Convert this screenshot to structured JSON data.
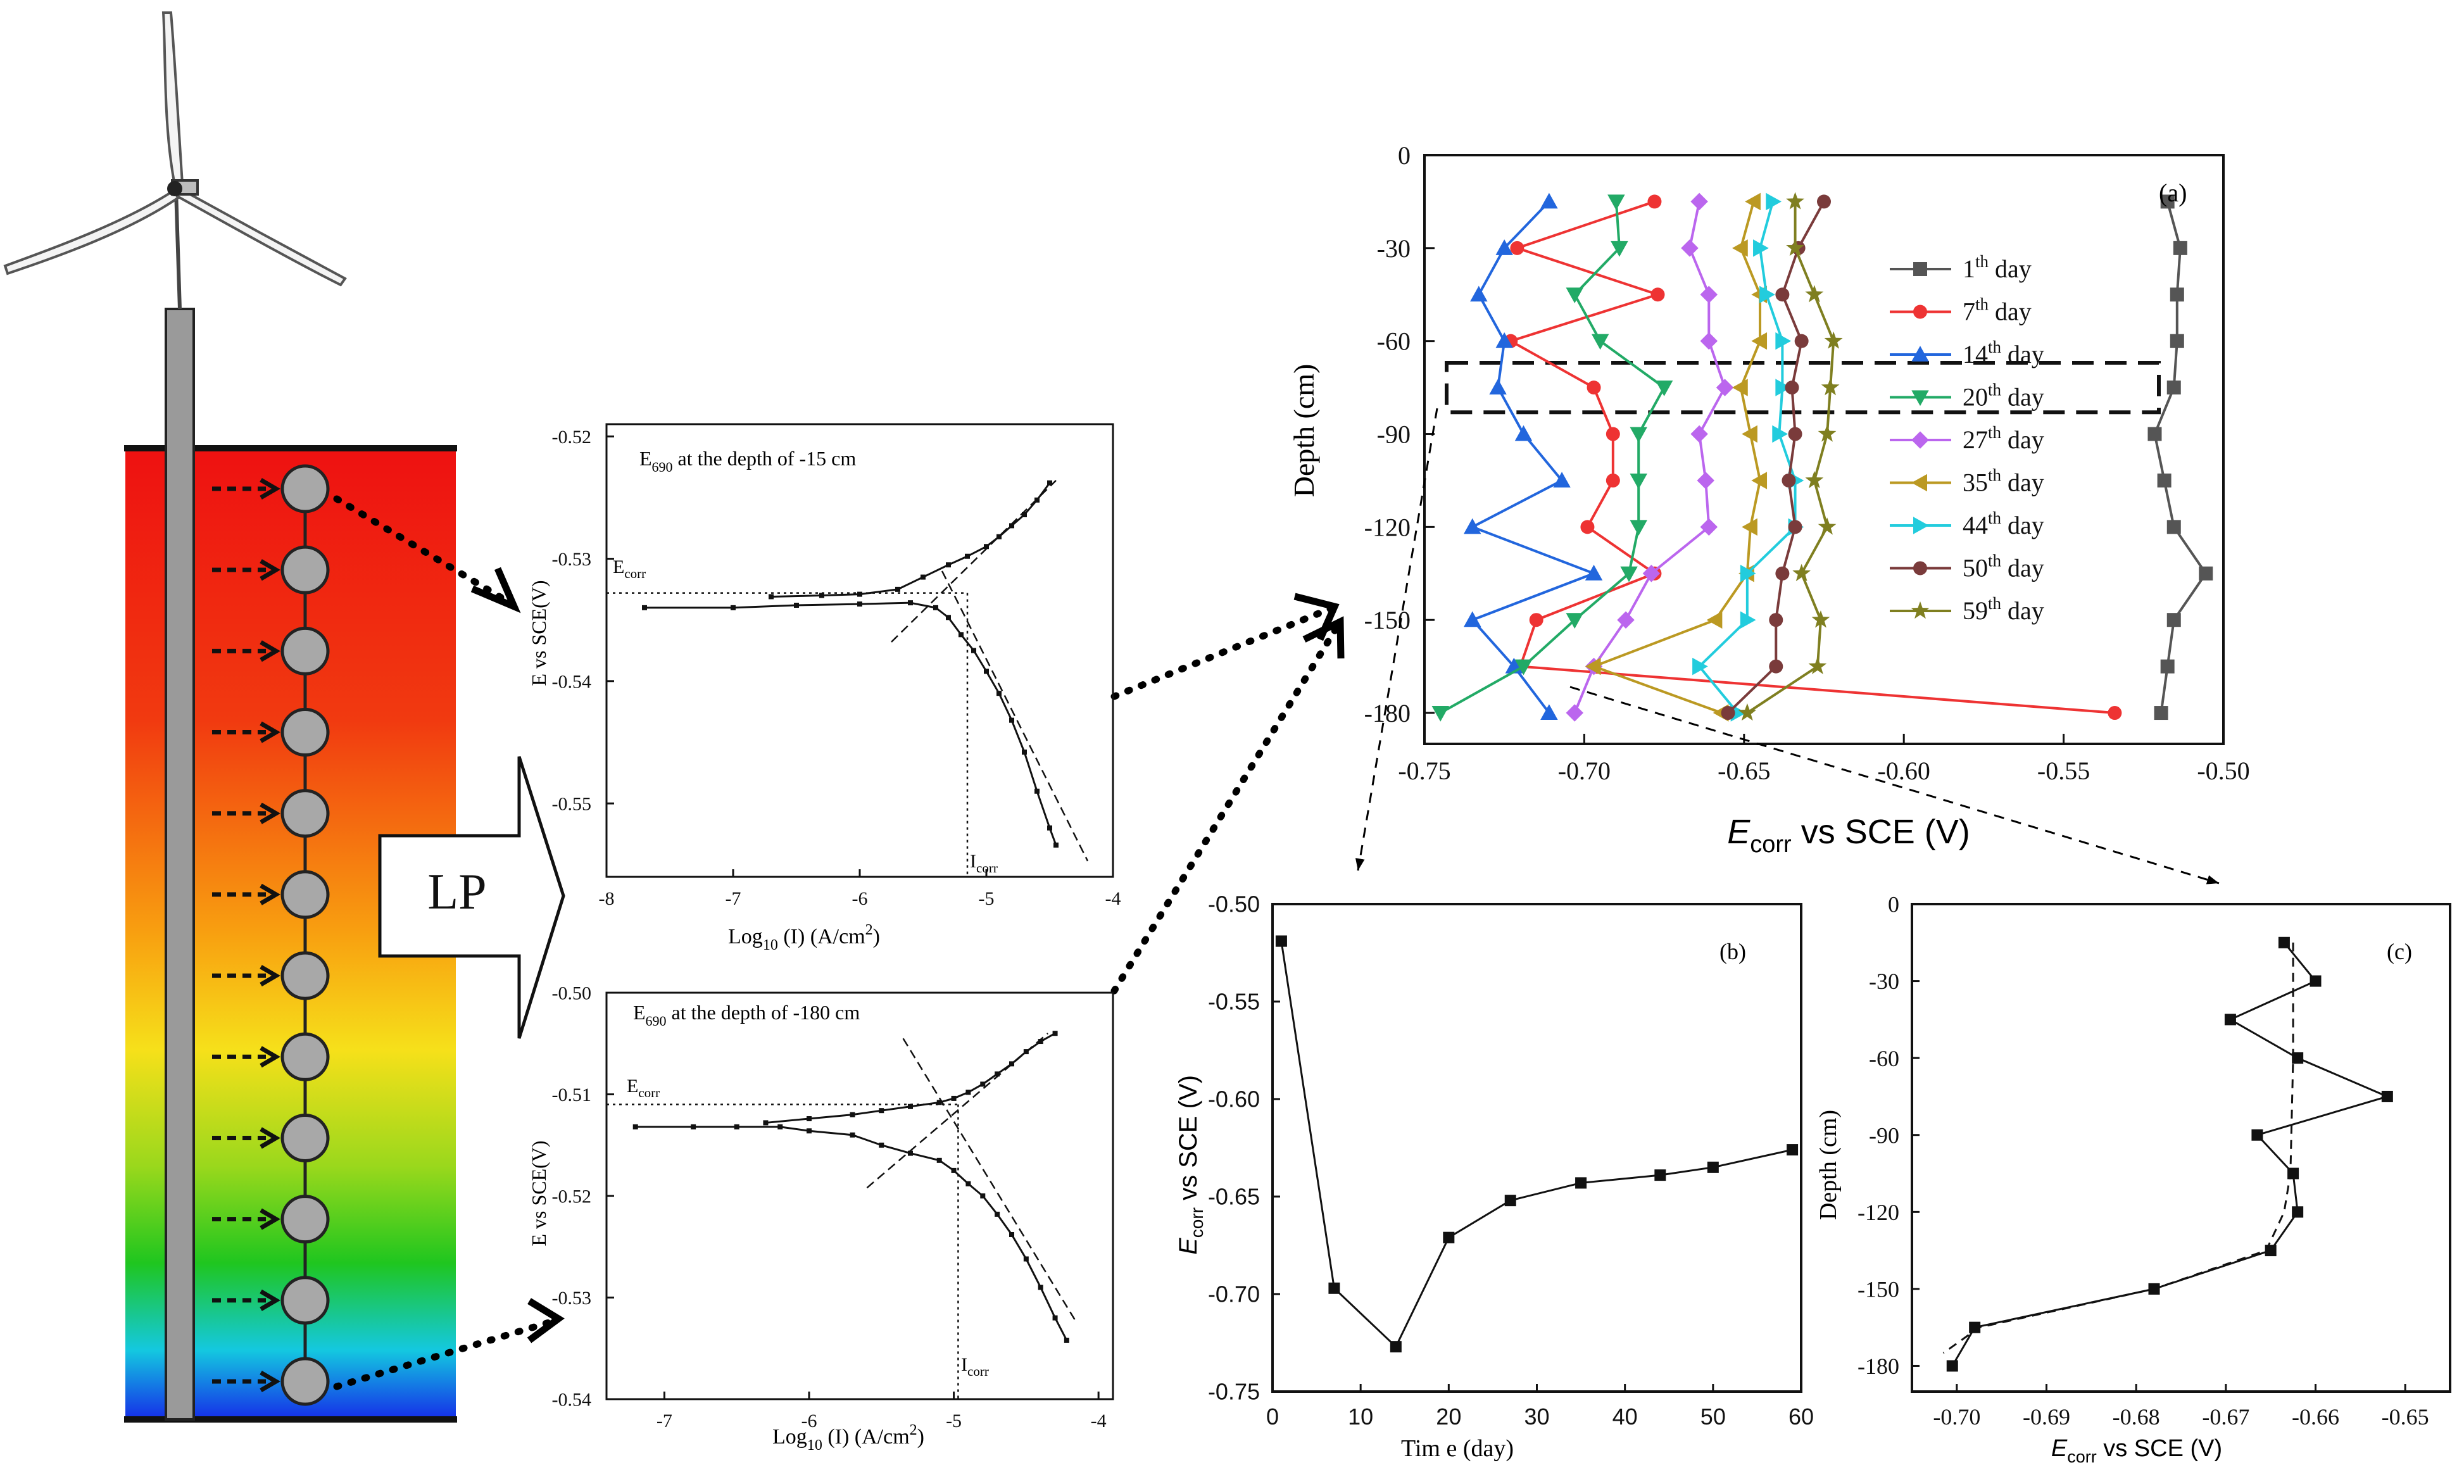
{
  "lp_label": "LP",
  "chart_data": [
    {
      "id": "polar15",
      "type": "line",
      "title": "E690 at the depth of -15 cm",
      "title_main": "E",
      "title_sub": "690",
      "title_rest": " at the depth of -15 cm",
      "xlabel": "Log10 (I) (A/cm2)",
      "xlabel_a": "Log",
      "xlabel_b": "10",
      "xlabel_c": " (I) (A/cm",
      "xlabel_d": "2",
      "xlabel_e": ")",
      "ylabel": "E vs SCE(V)",
      "xlim": [
        -8,
        -4
      ],
      "ylim": [
        -0.556,
        -0.519
      ],
      "xticks": [
        -8,
        -7,
        -6,
        -5,
        -4
      ],
      "xtick_labels": [
        "-8",
        "-7",
        "-6",
        "-5",
        "-4"
      ],
      "yticks": [
        -0.52,
        -0.53,
        -0.54,
        -0.55
      ],
      "ytick_labels": [
        "-0.52",
        "-0.53",
        "-0.54",
        "-0.55"
      ],
      "ecorr_label": "Ecorr",
      "ecorr_main": "E",
      "ecorr_sub": "corr",
      "icorr_label": "Icorr",
      "icorr_main": "I",
      "icorr_sub": "corr",
      "ecorr_value": -0.5328,
      "icorr_value": -5.15,
      "anodic": {
        "x": [
          -6.7,
          -6.3,
          -6.0,
          -5.7,
          -5.5,
          -5.3,
          -5.15,
          -5.0,
          -4.9,
          -4.8,
          -4.7,
          -4.6,
          -4.5
        ],
        "y": [
          -0.5331,
          -0.533,
          -0.5329,
          -0.5325,
          -0.5315,
          -0.5305,
          -0.5298,
          -0.529,
          -0.5282,
          -0.5273,
          -0.5264,
          -0.5252,
          -0.5238
        ]
      },
      "cathodic": {
        "x": [
          -7.7,
          -7.0,
          -6.5,
          -6.0,
          -5.6,
          -5.4,
          -5.3,
          -5.2,
          -5.1,
          -5.0,
          -4.9,
          -4.8,
          -4.7,
          -4.6,
          -4.5,
          -4.45
        ],
        "y": [
          -0.534,
          -0.534,
          -0.5338,
          -0.5337,
          -0.5336,
          -0.534,
          -0.5348,
          -0.5362,
          -0.5375,
          -0.5392,
          -0.541,
          -0.5432,
          -0.5458,
          -0.549,
          -0.552,
          -0.5534
        ]
      },
      "tafel_anodic": {
        "x": [
          -5.75,
          -4.45
        ],
        "y": [
          -0.5368,
          -0.5236
        ]
      },
      "tafel_cathodic": {
        "x": [
          -5.35,
          -4.2
        ],
        "y": [
          -0.531,
          -0.5547
        ]
      }
    },
    {
      "id": "polar180",
      "type": "line",
      "title": "E690 at the depth of -180 cm",
      "title_main": "E",
      "title_sub": "690",
      "title_rest": " at the depth of -180 cm",
      "xlabel": "Log10 (I) (A/cm2)",
      "xlabel_a": "Log",
      "xlabel_b": "10",
      "xlabel_c": " (I) (A/cm",
      "xlabel_d": "2",
      "xlabel_e": ")",
      "ylabel": "E vs SCE(V)",
      "xlim": [
        -7.4,
        -3.9
      ],
      "ylim": [
        -0.54,
        -0.5
      ],
      "xticks": [
        -7,
        -6,
        -5,
        -4
      ],
      "xtick_labels": [
        "-7",
        "-6",
        "-5",
        "-4"
      ],
      "yticks": [
        -0.5,
        -0.51,
        -0.52,
        -0.53,
        -0.54
      ],
      "ytick_labels": [
        "-0.50",
        "-0.51",
        "-0.52",
        "-0.53",
        "-0.54"
      ],
      "ecorr_label": "Ecorr",
      "ecorr_main": "E",
      "ecorr_sub": "corr",
      "icorr_label": "Icorr",
      "icorr_main": "I",
      "icorr_sub": "corr",
      "ecorr_value": -0.511,
      "icorr_value": -4.97,
      "anodic": {
        "x": [
          -6.3,
          -6.0,
          -5.7,
          -5.5,
          -5.3,
          -5.1,
          -5.0,
          -4.9,
          -4.8,
          -4.7,
          -4.6,
          -4.5,
          -4.4,
          -4.3
        ],
        "y": [
          -0.5128,
          -0.5124,
          -0.512,
          -0.5116,
          -0.5112,
          -0.5108,
          -0.5104,
          -0.5098,
          -0.509,
          -0.508,
          -0.507,
          -0.5058,
          -0.5048,
          -0.504
        ]
      },
      "cathodic": {
        "x": [
          -7.2,
          -6.8,
          -6.5,
          -6.2,
          -6.0,
          -5.7,
          -5.5,
          -5.3,
          -5.1,
          -5.0,
          -4.9,
          -4.8,
          -4.7,
          -4.6,
          -4.5,
          -4.4,
          -4.3,
          -4.22
        ],
        "y": [
          -0.5132,
          -0.5132,
          -0.5132,
          -0.5132,
          -0.5136,
          -0.514,
          -0.515,
          -0.5158,
          -0.5165,
          -0.5175,
          -0.5188,
          -0.52,
          -0.5218,
          -0.5238,
          -0.5262,
          -0.529,
          -0.532,
          -0.5342
        ]
      },
      "tafel_anodic": {
        "x": [
          -5.6,
          -4.35
        ],
        "y": [
          -0.5192,
          -0.504
        ]
      },
      "tafel_cathodic": {
        "x": [
          -5.35,
          -4.15
        ],
        "y": [
          -0.5045,
          -0.5325
        ]
      }
    },
    {
      "id": "a",
      "type": "line",
      "panel_label": "(a)",
      "xlabel_main": "E",
      "xlabel_sub": "corr",
      "xlabel_rest": " vs SCE (V)",
      "ylabel": "Depth (cm)",
      "xlim": [
        -0.75,
        -0.5
      ],
      "ylim": [
        -190,
        0
      ],
      "xticks": [
        -0.75,
        -0.7,
        -0.65,
        -0.6,
        -0.55,
        -0.5
      ],
      "xtick_labels": [
        "-0.75",
        "-0.70",
        "-0.65",
        "-0.60",
        "-0.55",
        "-0.50"
      ],
      "yticks": [
        0,
        -30,
        -60,
        -90,
        -120,
        -150,
        -180
      ],
      "ytick_labels": [
        "0",
        "-30",
        "-60",
        "-90",
        "-120",
        "-150",
        "-180"
      ],
      "depths": [
        -15,
        -30,
        -45,
        -60,
        -75,
        -90,
        -105,
        -120,
        -135,
        -150,
        -165,
        -180
      ],
      "highlight_depths": [
        -67,
        -83
      ],
      "series": [
        {
          "name": "1th day",
          "num": "1",
          "sup": "th",
          "rest": " day",
          "color": "#555555",
          "marker": "square",
          "x": [
            -0.5175,
            -0.5135,
            -0.5145,
            -0.5145,
            -0.5155,
            -0.5215,
            -0.5185,
            -0.5155,
            -0.5055,
            -0.5155,
            -0.5175,
            -0.5195
          ]
        },
        {
          "name": "7th day",
          "num": "7",
          "sup": "th",
          "rest": " day",
          "color": "#ee3333",
          "marker": "circle",
          "x": [
            -0.678,
            -0.721,
            -0.677,
            -0.723,
            -0.697,
            -0.691,
            -0.691,
            -0.699,
            -0.678,
            -0.715,
            -0.72,
            -0.534
          ]
        },
        {
          "name": "14th day",
          "num": "14",
          "sup": "th",
          "rest": " day",
          "color": "#2266dd",
          "marker": "triangle-up",
          "x": [
            -0.711,
            -0.725,
            -0.733,
            -0.725,
            -0.727,
            -0.719,
            -0.707,
            -0.735,
            -0.697,
            -0.735,
            -0.722,
            -0.711
          ]
        },
        {
          "name": "20th day",
          "num": "20",
          "sup": "th",
          "rest": " day",
          "color": "#22aa66",
          "marker": "triangle-down",
          "x": [
            -0.69,
            -0.689,
            -0.703,
            -0.695,
            -0.675,
            -0.683,
            -0.683,
            -0.683,
            -0.686,
            -0.703,
            -0.719,
            -0.745
          ]
        },
        {
          "name": "27th day",
          "num": "27",
          "sup": "th",
          "rest": " day",
          "color": "#bb66ee",
          "marker": "diamond",
          "x": [
            -0.664,
            -0.667,
            -0.661,
            -0.661,
            -0.656,
            -0.664,
            -0.662,
            -0.661,
            -0.679,
            -0.687,
            -0.697,
            -0.703
          ]
        },
        {
          "name": "35th day",
          "num": "35",
          "sup": "th",
          "rest": " day",
          "color": "#bb9922",
          "marker": "triangle-left",
          "x": [
            -0.647,
            -0.651,
            -0.645,
            -0.645,
            -0.651,
            -0.648,
            -0.645,
            -0.648,
            -0.649,
            -0.659,
            -0.697,
            -0.657
          ]
        },
        {
          "name": "44th day",
          "num": "44",
          "sup": "th",
          "rest": " day",
          "color": "#22ccdd",
          "marker": "triangle-right",
          "x": [
            -0.641,
            -0.645,
            -0.643,
            -0.638,
            -0.638,
            -0.639,
            -0.634,
            -0.634,
            -0.649,
            -0.649,
            -0.664,
            -0.652
          ]
        },
        {
          "name": "50th day",
          "num": "50",
          "sup": "th",
          "rest": " day",
          "color": "#7a3b3b",
          "marker": "circle",
          "x": [
            -0.625,
            -0.633,
            -0.638,
            -0.632,
            -0.635,
            -0.634,
            -0.636,
            -0.634,
            -0.638,
            -0.64,
            -0.64,
            -0.655
          ]
        },
        {
          "name": "59th day",
          "num": "59",
          "sup": "th",
          "rest": " day",
          "color": "#7f7f20",
          "marker": "star",
          "x": [
            -0.634,
            -0.634,
            -0.628,
            -0.622,
            -0.623,
            -0.624,
            -0.628,
            -0.624,
            -0.632,
            -0.626,
            -0.627,
            -0.649
          ]
        }
      ]
    },
    {
      "id": "b",
      "type": "line",
      "panel_label": "(b)",
      "xlabel": "Time (day)",
      "xlabel_display": "Tim e (day)",
      "ylabel_main": "E",
      "ylabel_sub": "corr",
      "ylabel_rest": " vs SCE (V)",
      "xlim": [
        0,
        60
      ],
      "ylim": [
        -0.75,
        -0.5
      ],
      "xticks": [
        0,
        10,
        20,
        30,
        40,
        50,
        60
      ],
      "xtick_labels": [
        "0",
        "10",
        "20",
        "30",
        "40",
        "50",
        "60"
      ],
      "yticks": [
        -0.5,
        -0.55,
        -0.6,
        -0.65,
        -0.7,
        -0.75
      ],
      "ytick_labels": [
        "-0.50",
        "-0.55",
        "-0.60",
        "-0.65",
        "-0.70",
        "-0.75"
      ],
      "x": [
        1,
        7,
        14,
        20,
        27,
        35,
        44,
        50,
        59
      ],
      "y": [
        -0.519,
        -0.697,
        -0.727,
        -0.671,
        -0.652,
        -0.643,
        -0.639,
        -0.635,
        -0.626
      ]
    },
    {
      "id": "c",
      "type": "line",
      "panel_label": "(c)",
      "xlabel_main": "E",
      "xlabel_sub": "corr",
      "xlabel_rest": " vs SCE (V)",
      "ylabel": "Depth (cm)",
      "xlim": [
        -0.705,
        -0.645
      ],
      "ylim": [
        -190,
        0
      ],
      "xticks": [
        -0.7,
        -0.69,
        -0.68,
        -0.67,
        -0.66,
        -0.65
      ],
      "xtick_labels": [
        "-0.70",
        "-0.69",
        "-0.68",
        "-0.67",
        "-0.66",
        "-0.65"
      ],
      "yticks": [
        0,
        -30,
        -60,
        -90,
        -120,
        -150,
        -180
      ],
      "ytick_labels": [
        "0",
        "-30",
        "-60",
        "-90",
        "-120",
        "-150",
        "-180"
      ],
      "measured": {
        "y": [
          -15,
          -30,
          -45,
          -60,
          -75,
          -90,
          -105,
          -120,
          -135,
          -150,
          -165,
          -180
        ],
        "x": [
          -0.6635,
          -0.66,
          -0.6695,
          -0.662,
          -0.652,
          -0.6665,
          -0.6625,
          -0.662,
          -0.665,
          -0.678,
          -0.698,
          -0.7005
        ]
      },
      "fit": {
        "y": [
          -15,
          -60,
          -105,
          -120,
          -135,
          -150,
          -165,
          -175
        ],
        "x": [
          -0.6625,
          -0.6625,
          -0.6628,
          -0.6635,
          -0.6655,
          -0.678,
          -0.6975,
          -0.7015
        ]
      }
    }
  ]
}
